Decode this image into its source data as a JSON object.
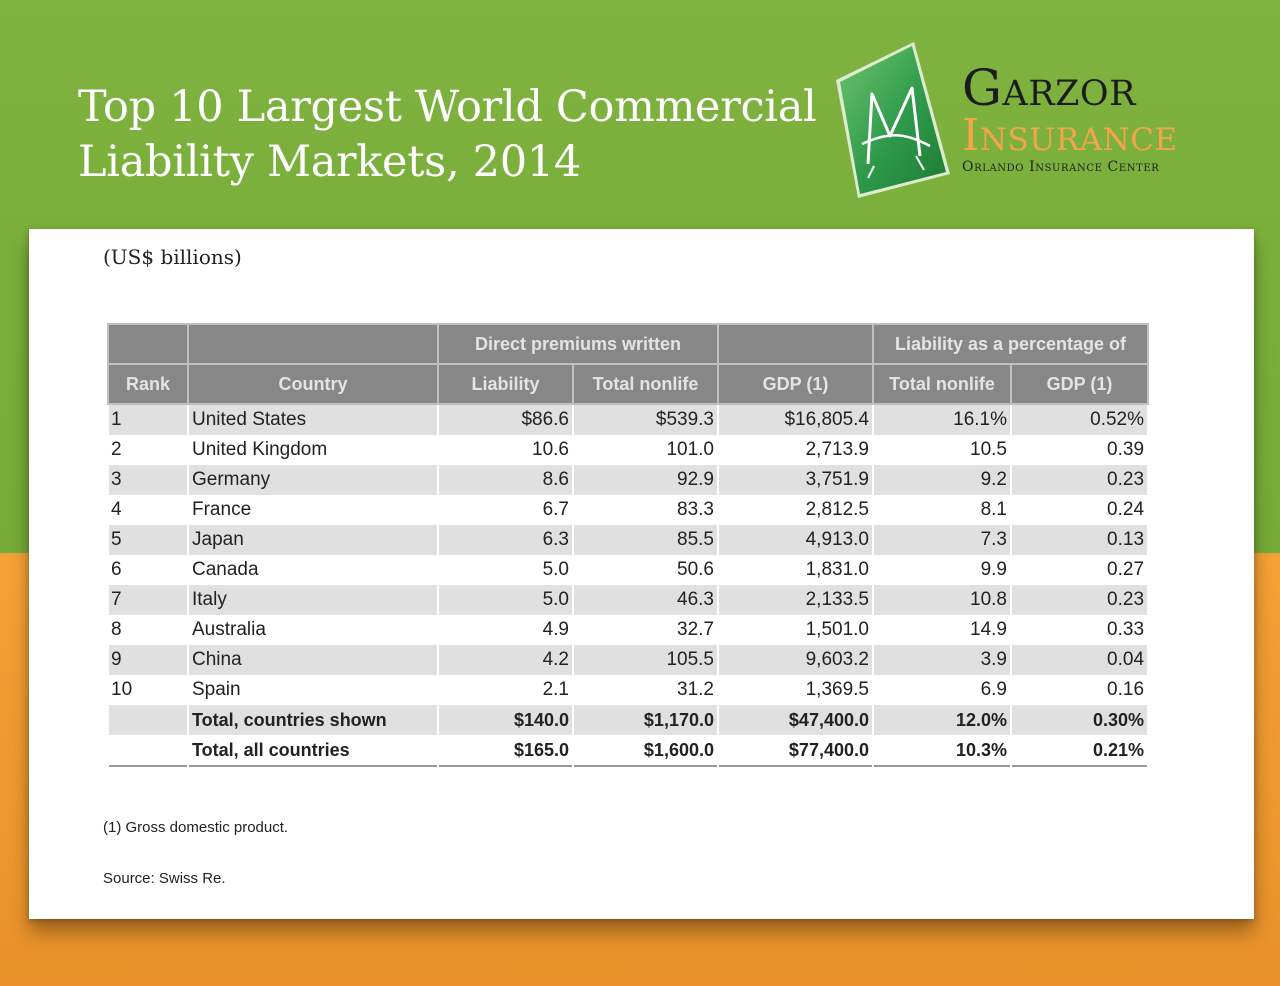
{
  "title": {
    "line1": "Top 10 Largest World Commercial",
    "line2": "Liability Markets, 2014"
  },
  "logo": {
    "name": "Garzor",
    "sub": "Insurance",
    "tagline": "Orlando Insurance Center",
    "colors": {
      "green": "#2e9a4a",
      "orange": "#f2a54a"
    }
  },
  "unit_note": "(US$ billions)",
  "table": {
    "group_headers": {
      "premiums": "Direct premiums written",
      "percentage": "Liability as a percentage of"
    },
    "columns": [
      "Rank",
      "Country",
      "Liability",
      "Total nonlife",
      "GDP (1)",
      "Total nonlife",
      "GDP (1)"
    ],
    "rows": [
      [
        "1",
        "United States",
        "$86.6",
        "$539.3",
        "$16,805.4",
        "16.1%",
        "0.52%"
      ],
      [
        "2",
        "United Kingdom",
        "10.6",
        "101.0",
        "2,713.9",
        "10.5",
        "0.39"
      ],
      [
        "3",
        "Germany",
        "8.6",
        "92.9",
        "3,751.9",
        "9.2",
        "0.23"
      ],
      [
        "4",
        "France",
        "6.7",
        "83.3",
        "2,812.5",
        "8.1",
        "0.24"
      ],
      [
        "5",
        "Japan",
        "6.3",
        "85.5",
        "4,913.0",
        "7.3",
        "0.13"
      ],
      [
        "6",
        "Canada",
        "5.0",
        "50.6",
        "1,831.0",
        "9.9",
        "0.27"
      ],
      [
        "7",
        "Italy",
        "5.0",
        "46.3",
        "2,133.5",
        "10.8",
        "0.23"
      ],
      [
        "8",
        "Australia",
        "4.9",
        "32.7",
        "1,501.0",
        "14.9",
        "0.33"
      ],
      [
        "9",
        "China",
        "4.2",
        "105.5",
        "9,603.2",
        "3.9",
        "0.04"
      ],
      [
        "10",
        "Spain",
        "2.1",
        "31.2",
        "1,369.5",
        "6.9",
        "0.16"
      ]
    ],
    "totals": [
      [
        "",
        "Total, countries shown",
        "$140.0",
        "$1,170.0",
        "$47,400.0",
        "12.0%",
        "0.30%"
      ],
      [
        "",
        "Total, all countries",
        "$165.0",
        "$1,600.0",
        "$77,400.0",
        "10.3%",
        "0.21%"
      ]
    ]
  },
  "footnote": "(1) Gross domestic product.",
  "source": "Source: Swiss Re.",
  "colors": {
    "top_background": "#7fb23f",
    "bottom_background": "#f29b32",
    "header_fill": "#878787",
    "row_shade": "#e0e0e0"
  }
}
